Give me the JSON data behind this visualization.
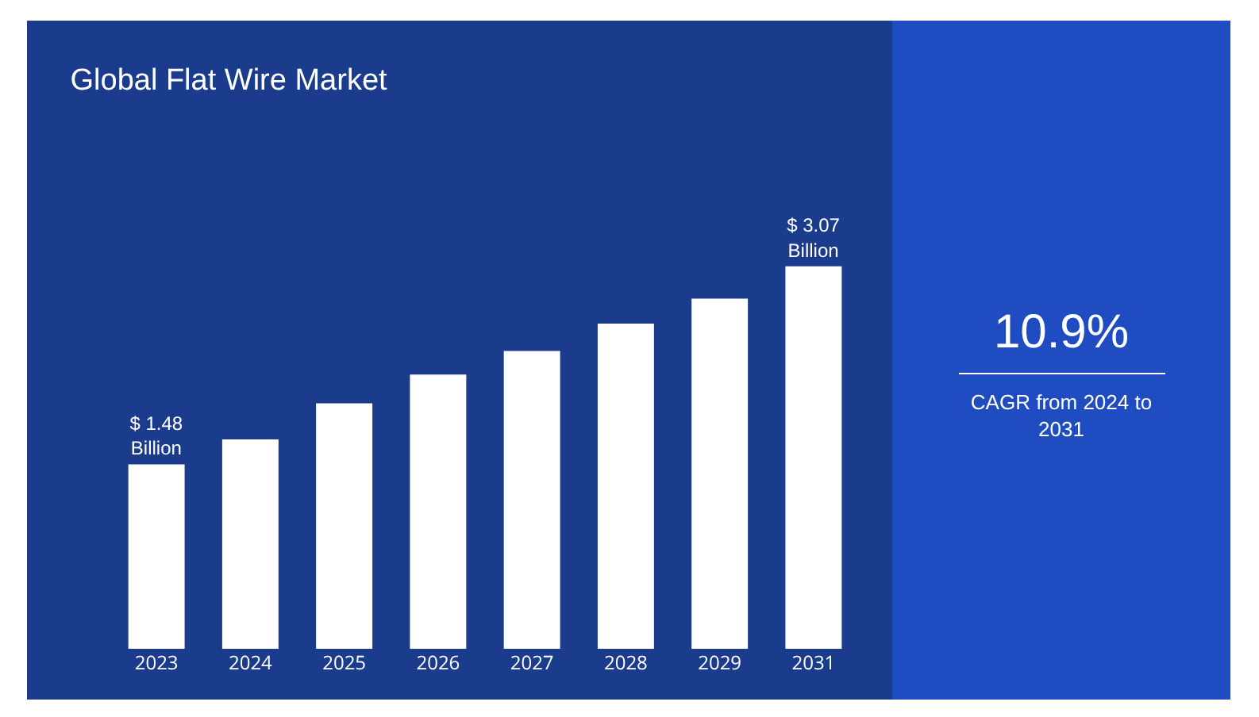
{
  "chart_data": {
    "type": "bar",
    "title": "Global Flat Wire Market",
    "categories": [
      "2023",
      "2024",
      "2025",
      "2026",
      "2027",
      "2028",
      "2029",
      "2031"
    ],
    "values": [
      1.48,
      1.68,
      1.97,
      2.2,
      2.39,
      2.61,
      2.81,
      3.07
    ],
    "value_labels": [
      "$ 1.48 Billion",
      null,
      null,
      null,
      null,
      null,
      null,
      "$ 3.07 Billion"
    ],
    "color": "#ffffff",
    "legend": false,
    "annotations": [
      "10.9%",
      "CAGR from 2024 to 2031"
    ]
  }
}
